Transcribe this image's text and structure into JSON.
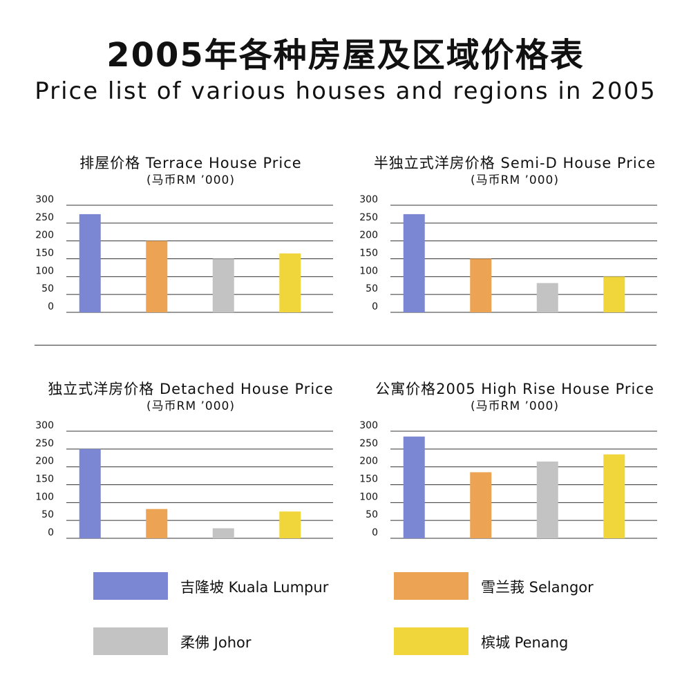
{
  "title_zh": "2005年各种房屋及区域价格表",
  "title_en": "Price list of various houses and regions in 2005",
  "colors": {
    "kl": "#7b87d2",
    "selangor": "#eda354",
    "johor": "#c3c3c3",
    "penang": "#f0d63a",
    "gridline": "#333333"
  },
  "legend": [
    {
      "label": "吉隆坡 Kuala Lumpur",
      "color": "#7b87d2"
    },
    {
      "label": "雪兰莪 Selangor",
      "color": "#eda354"
    },
    {
      "label": "柔佛 Johor",
      "color": "#c3c3c3"
    },
    {
      "label": "槟城 Penang",
      "color": "#f0d63a"
    }
  ],
  "chart_data": [
    {
      "type": "bar",
      "title": "排屋价格 Terrace House Price",
      "unit": "(马币RM ’000)",
      "categories": [
        "吉隆坡 Kuala Lumpur",
        "雪兰莪 Selangor",
        "柔佛 Johor",
        "槟城 Penang"
      ],
      "values": [
        275,
        200,
        150,
        165
      ],
      "yticks": [
        "300",
        "250",
        "200",
        "150",
        "100",
        "50",
        "0"
      ],
      "ylim": [
        0,
        300
      ],
      "grid": true
    },
    {
      "type": "bar",
      "title": "半独立式洋房价格 Semi-D House Price",
      "unit": "(马币RM ’000)",
      "categories": [
        "吉隆坡 Kuala Lumpur",
        "雪兰莪 Selangor",
        "柔佛 Johor",
        "槟城 Penang"
      ],
      "values": [
        275,
        150,
        82,
        100
      ],
      "yticks": [
        "300",
        "250",
        "200",
        "150",
        "100",
        "50",
        "0"
      ],
      "ylim": [
        0,
        300
      ],
      "grid": true
    },
    {
      "type": "bar",
      "title": "独立式洋房价格 Detached House Price",
      "unit": "(马币RM ’000)",
      "categories": [
        "吉隆坡 Kuala Lumpur",
        "雪兰莪 Selangor",
        "柔佛 Johor",
        "槟城 Penang"
      ],
      "values": [
        250,
        82,
        28,
        75
      ],
      "yticks": [
        "300",
        "250",
        "200",
        "150",
        "100",
        "50",
        "0"
      ],
      "ylim": [
        0,
        300
      ],
      "grid": true
    },
    {
      "type": "bar",
      "title": "公寓价格2005 High Rise House Price",
      "unit": "(马币RM ’000)",
      "categories": [
        "吉隆坡 Kuala Lumpur",
        "雪兰莪 Selangor",
        "柔佛 Johor",
        "槟城 Penang"
      ],
      "values": [
        285,
        185,
        215,
        235
      ],
      "yticks": [
        "300",
        "250",
        "200",
        "150",
        "100",
        "50",
        "0"
      ],
      "ylim": [
        0,
        300
      ],
      "grid": true
    }
  ]
}
